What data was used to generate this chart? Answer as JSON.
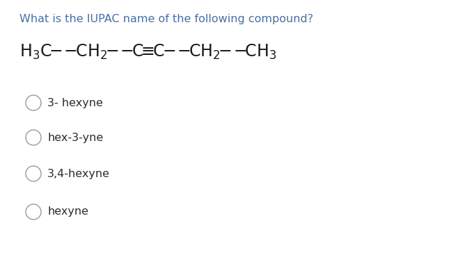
{
  "background_color": "#ffffff",
  "question_text": "What is the IUPAC name of the following compound?",
  "question_color": "#4a6fa5",
  "question_fontsize": 11.5,
  "compound_color": "#1a1a1a",
  "compound_fontsize": 17,
  "options": [
    "3- hexyne",
    "hex-3-yne",
    "3,4-hexyne",
    "hexyne"
  ],
  "option_color": "#2c2c2c",
  "option_fontsize": 11.5,
  "circle_color": "#999999",
  "circle_linewidth": 1.0
}
